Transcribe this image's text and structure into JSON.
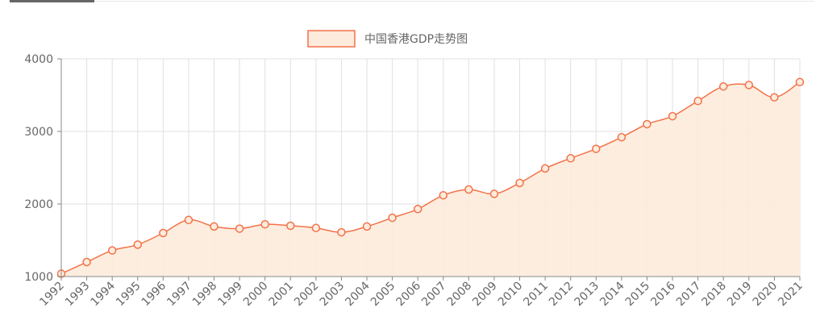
{
  "chart_data": {
    "type": "area",
    "legend": {
      "label": "中国香港GDP走势图",
      "position": "top-center"
    },
    "categories": [
      "1992",
      "1993",
      "1994",
      "1995",
      "1996",
      "1997",
      "1998",
      "1999",
      "2000",
      "2001",
      "2002",
      "2003",
      "2004",
      "2005",
      "2006",
      "2007",
      "2008",
      "2009",
      "2010",
      "2011",
      "2012",
      "2013",
      "2014",
      "2015",
      "2016",
      "2017",
      "2018",
      "2019",
      "2020",
      "2021"
    ],
    "series": [
      {
        "name": "中国香港GDP走势图",
        "values": [
          1040,
          1200,
          1360,
          1440,
          1600,
          1780,
          1690,
          1660,
          1720,
          1700,
          1670,
          1610,
          1690,
          1810,
          1930,
          2120,
          2200,
          2140,
          2290,
          2490,
          2630,
          2760,
          2920,
          3100,
          3210,
          3420,
          3620,
          3640,
          3470,
          3680
        ]
      }
    ],
    "yticks": [
      "1000",
      "2000",
      "3000",
      "4000"
    ],
    "ylim": [
      1000,
      4000
    ],
    "grid": true,
    "colors": {
      "line": "#f2734a",
      "fill": "#fdebdc",
      "grid": "#e0e0e0",
      "axis": "#888888",
      "text": "#666666"
    }
  }
}
